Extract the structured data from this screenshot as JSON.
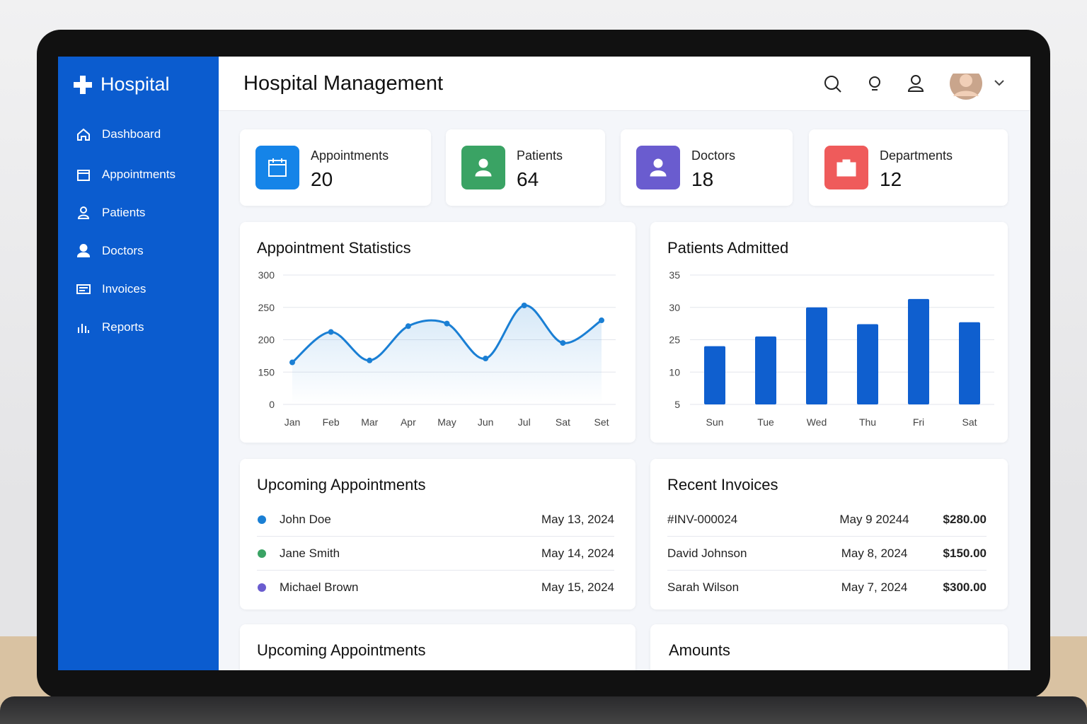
{
  "sidebar": {
    "brand": "Hospital",
    "nav": [
      "Dashboard",
      "Appointments",
      "Patients",
      "Doctors",
      "Invoices",
      "Reports"
    ]
  },
  "header": {
    "title": "Hospital Management"
  },
  "stats": [
    {
      "label": "Appointments",
      "value": 20
    },
    {
      "label": "Patients",
      "value": 64
    },
    {
      "label": "Doctors",
      "value": 18
    },
    {
      "label": "Departments",
      "value": 12
    }
  ],
  "chart_data": [
    {
      "type": "line",
      "title": "Appointment Statistics",
      "categories": [
        "Jan",
        "Feb",
        "Mar",
        "Apr",
        "May",
        "Jun",
        "Jul",
        "Sat",
        "Set"
      ],
      "series": [
        {
          "color": "#1a7fd4",
          "values": [
            165,
            212,
            168,
            221,
            225,
            171,
            253,
            195,
            230
          ]
        }
      ],
      "ylim": [
        0,
        300
      ],
      "yticks": [
        0,
        150,
        200,
        250,
        300
      ],
      "grid": true
    },
    {
      "type": "bar",
      "title": "Patients Admitted",
      "categories": [
        "Sun",
        "Tue",
        "Wed",
        "Thu",
        "Fri",
        "Sat"
      ],
      "series": [
        {
          "color": "#0f5fcf",
          "values": [
            22,
            25.5,
            30,
            27.4,
            31.3,
            27.7
          ]
        }
      ],
      "ylim": [
        5,
        35
      ],
      "yticks": [
        5,
        10,
        25,
        30,
        35
      ],
      "grid": true
    }
  ],
  "upcoming": {
    "title": "Upcoming Appointments",
    "items": [
      {
        "name": "John Doe",
        "date": "May 13, 2024"
      },
      {
        "name": "Jane Smith",
        "date": "May 14, 2024"
      },
      {
        "name": "Michael Brown",
        "date": "May 15, 2024"
      }
    ]
  },
  "invoices": {
    "title": "Recent Invoices",
    "rows": [
      [
        "#INV-000024",
        "May 9 20244",
        "$280.00"
      ],
      [
        "David Johnson",
        "May 8, 2024",
        "$150.00"
      ],
      [
        "Sarah Wilson",
        "May 7, 2024",
        "$300.00"
      ]
    ]
  },
  "bottom": [
    "Upcoming Appointments",
    "Amounts"
  ]
}
